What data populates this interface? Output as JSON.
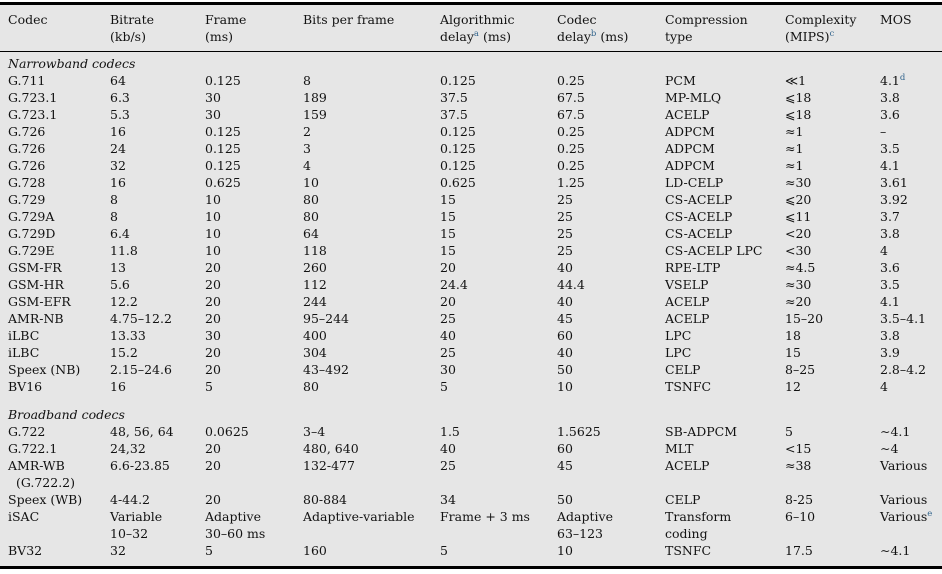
{
  "colors": {
    "bg": "#e6e6e6",
    "text": "#121212",
    "rule": "#000000",
    "footnote": "#33658d"
  },
  "table": {
    "columns": [
      {
        "id": "codec",
        "lines": [
          [
            {
              "t": "Codec"
            }
          ]
        ]
      },
      {
        "id": "bitrate",
        "lines": [
          [
            {
              "t": "Bitrate"
            }
          ],
          [
            {
              "t": "(kb/s)"
            }
          ]
        ]
      },
      {
        "id": "frame",
        "lines": [
          [
            {
              "t": "Frame"
            }
          ],
          [
            {
              "t": "(ms)"
            }
          ]
        ]
      },
      {
        "id": "bits-per-frame",
        "lines": [
          [
            {
              "t": "Bits per frame"
            }
          ]
        ]
      },
      {
        "id": "algorithmic-delay",
        "lines": [
          [
            {
              "t": "Algorithmic"
            }
          ],
          [
            {
              "t": "delay"
            },
            {
              "sup": "a"
            },
            {
              "t": " (ms)"
            }
          ]
        ]
      },
      {
        "id": "codec-delay",
        "lines": [
          [
            {
              "t": "Codec"
            }
          ],
          [
            {
              "t": "delay"
            },
            {
              "sup": "b"
            },
            {
              "t": " (ms)"
            }
          ]
        ]
      },
      {
        "id": "compression-type",
        "lines": [
          [
            {
              "t": "Compression"
            }
          ],
          [
            {
              "t": "type"
            }
          ]
        ]
      },
      {
        "id": "complexity",
        "lines": [
          [
            {
              "t": "Complexity"
            }
          ],
          [
            {
              "t": "(MIPS)"
            },
            {
              "sup": "c"
            }
          ]
        ]
      },
      {
        "id": "mos",
        "lines": [
          [
            {
              "t": "MOS"
            }
          ]
        ]
      }
    ],
    "rows": [
      {
        "type": "section",
        "label": "Narrowband codecs"
      },
      {
        "type": "data",
        "cells": [
          "G.711",
          "64",
          "0.125",
          "8",
          "0.125",
          "0.25",
          "PCM",
          "≪1",
          [
            {
              "t": "4.1"
            },
            {
              "sup": "d"
            }
          ]
        ]
      },
      {
        "type": "data",
        "cells": [
          "G.723.1",
          "6.3",
          "30",
          "189",
          "37.5",
          "67.5",
          "MP-MLQ",
          "⩽18",
          "3.8"
        ]
      },
      {
        "type": "data",
        "cells": [
          "G.723.1",
          "5.3",
          "30",
          "159",
          "37.5",
          "67.5",
          "ACELP",
          "⩽18",
          "3.6"
        ]
      },
      {
        "type": "data",
        "cells": [
          "G.726",
          "16",
          "0.125",
          "2",
          "0.125",
          "0.25",
          "ADPCM",
          "≈1",
          "–"
        ]
      },
      {
        "type": "data",
        "cells": [
          "G.726",
          "24",
          "0.125",
          "3",
          "0.125",
          "0.25",
          "ADPCM",
          "≈1",
          "3.5"
        ]
      },
      {
        "type": "data",
        "cells": [
          "G.726",
          "32",
          "0.125",
          "4",
          "0.125",
          "0.25",
          "ADPCM",
          "≈1",
          "4.1"
        ]
      },
      {
        "type": "data",
        "cells": [
          "G.728",
          "16",
          "0.625",
          "10",
          "0.625",
          "1.25",
          "LD-CELP",
          "≈30",
          "3.61"
        ]
      },
      {
        "type": "data",
        "cells": [
          "G.729",
          "8",
          "10",
          "80",
          "15",
          "25",
          "CS-ACELP",
          "⩽20",
          "3.92"
        ]
      },
      {
        "type": "data",
        "cells": [
          "G.729A",
          "8",
          "10",
          "80",
          "15",
          "25",
          "CS-ACELP",
          "⩽11",
          "3.7"
        ]
      },
      {
        "type": "data",
        "cells": [
          "G.729D",
          "6.4",
          "10",
          "64",
          "15",
          "25",
          "CS-ACELP",
          "<20",
          "3.8"
        ]
      },
      {
        "type": "data",
        "cells": [
          "G.729E",
          "11.8",
          "10",
          "118",
          "15",
          "25",
          "CS-ACELP LPC",
          "<30",
          "4"
        ]
      },
      {
        "type": "data",
        "cells": [
          "GSM-FR",
          "13",
          "20",
          "260",
          "20",
          "40",
          "RPE-LTP",
          "≈4.5",
          "3.6"
        ]
      },
      {
        "type": "data",
        "cells": [
          "GSM-HR",
          "5.6",
          "20",
          "112",
          "24.4",
          "44.4",
          "VSELP",
          "≈30",
          "3.5"
        ]
      },
      {
        "type": "data",
        "cells": [
          "GSM-EFR",
          "12.2",
          "20",
          "244",
          "20",
          "40",
          "ACELP",
          "≈20",
          "4.1"
        ]
      },
      {
        "type": "data",
        "cells": [
          "AMR-NB",
          "4.75–12.2",
          "20",
          "95–244",
          "25",
          "45",
          "ACELP",
          "15–20",
          "3.5–4.1"
        ]
      },
      {
        "type": "data",
        "cells": [
          "iLBC",
          "13.33",
          "30",
          "400",
          "40",
          "60",
          "LPC",
          "18",
          "3.8"
        ]
      },
      {
        "type": "data",
        "cells": [
          "iLBC",
          "15.2",
          "20",
          "304",
          "25",
          "40",
          "LPC",
          "15",
          "3.9"
        ]
      },
      {
        "type": "data",
        "cells": [
          "Speex (NB)",
          "2.15–24.6",
          "20",
          "43–492",
          "30",
          "50",
          "CELP",
          "8–25",
          "2.8–4.2"
        ]
      },
      {
        "type": "data",
        "cells": [
          "BV16",
          "16",
          "5",
          "80",
          "5",
          "10",
          "TSNFC",
          "12",
          "4"
        ]
      },
      {
        "type": "section",
        "label": "Broadband codecs",
        "gap": true
      },
      {
        "type": "data",
        "cells": [
          "G.722",
          "48, 56, 64",
          "0.0625",
          "3–4",
          "1.5",
          "1.5625",
          "SB-ADPCM",
          "5",
          "∼4.1"
        ]
      },
      {
        "type": "data",
        "cells": [
          "G.722.1",
          "24,32",
          "20",
          "480, 640",
          "40",
          "60",
          "MLT",
          "<15",
          "∼4"
        ]
      },
      {
        "type": "data",
        "cells": [
          "AMR-WB\n  (G.722.2)",
          "6.6-23.85",
          "20",
          "132-477",
          "25",
          "45",
          "ACELP",
          "≈38",
          "Various"
        ]
      },
      {
        "type": "data",
        "cells": [
          "Speex (WB)",
          "4-44.2",
          "20",
          "80-884",
          "34",
          "50",
          "CELP",
          "8-25",
          "Various"
        ]
      },
      {
        "type": "data",
        "cells": [
          "iSAC",
          "Variable\n10–32",
          "Adaptive\n30–60 ms",
          "Adaptive-variable",
          "Frame + 3 ms",
          "Adaptive\n63–123",
          "Transform\ncoding",
          "6–10",
          [
            {
              "t": "Various"
            },
            {
              "sup": "e"
            }
          ]
        ]
      },
      {
        "type": "data",
        "cells": [
          "BV32",
          "32",
          "5",
          "160",
          "5",
          "10",
          "TSNFC",
          "17.5",
          "∼4.1"
        ]
      }
    ]
  }
}
